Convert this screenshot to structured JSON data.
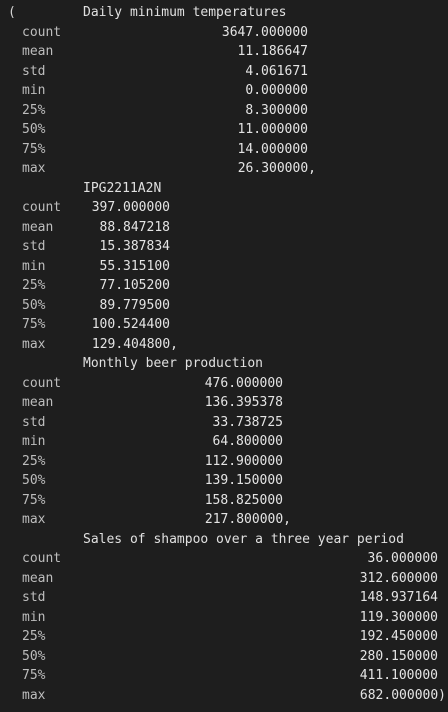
{
  "output": {
    "open_paren": "(",
    "blocks": [
      {
        "header": "Daily minimum temperatures",
        "rows": [
          {
            "label": "count",
            "value": "3647.000000"
          },
          {
            "label": "mean",
            "value": "11.186647"
          },
          {
            "label": "std",
            "value": "4.061671"
          },
          {
            "label": "min",
            "value": "0.000000"
          },
          {
            "label": "25%",
            "value": "8.300000"
          },
          {
            "label": "50%",
            "value": "11.000000"
          },
          {
            "label": "75%",
            "value": "14.000000"
          },
          {
            "label": "max",
            "value": "26.300000,"
          }
        ]
      },
      {
        "header": "IPG2211A2N",
        "rows": [
          {
            "label": "count",
            "value": "397.000000"
          },
          {
            "label": "mean",
            "value": "88.847218"
          },
          {
            "label": "std",
            "value": "15.387834"
          },
          {
            "label": "min",
            "value": "55.315100"
          },
          {
            "label": "25%",
            "value": "77.105200"
          },
          {
            "label": "50%",
            "value": "89.779500"
          },
          {
            "label": "75%",
            "value": "100.524400"
          },
          {
            "label": "max",
            "value": "129.404800,"
          }
        ]
      },
      {
        "header": "Monthly beer production",
        "rows": [
          {
            "label": "count",
            "value": "476.000000"
          },
          {
            "label": "mean",
            "value": "136.395378"
          },
          {
            "label": "std",
            "value": "33.738725"
          },
          {
            "label": "min",
            "value": "64.800000"
          },
          {
            "label": "25%",
            "value": "112.900000"
          },
          {
            "label": "50%",
            "value": "139.150000"
          },
          {
            "label": "75%",
            "value": "158.825000"
          },
          {
            "label": "max",
            "value": "217.800000,"
          }
        ]
      },
      {
        "header": "Sales of shampoo over a three year period",
        "rows": [
          {
            "label": "count",
            "value": "36.000000"
          },
          {
            "label": "mean",
            "value": "312.600000"
          },
          {
            "label": "std",
            "value": "148.937164"
          },
          {
            "label": "min",
            "value": "119.300000"
          },
          {
            "label": "25%",
            "value": "192.450000"
          },
          {
            "label": "50%",
            "value": "280.150000"
          },
          {
            "label": "75%",
            "value": "411.100000"
          },
          {
            "label": "max",
            "value": "682.000000)"
          }
        ]
      }
    ]
  }
}
